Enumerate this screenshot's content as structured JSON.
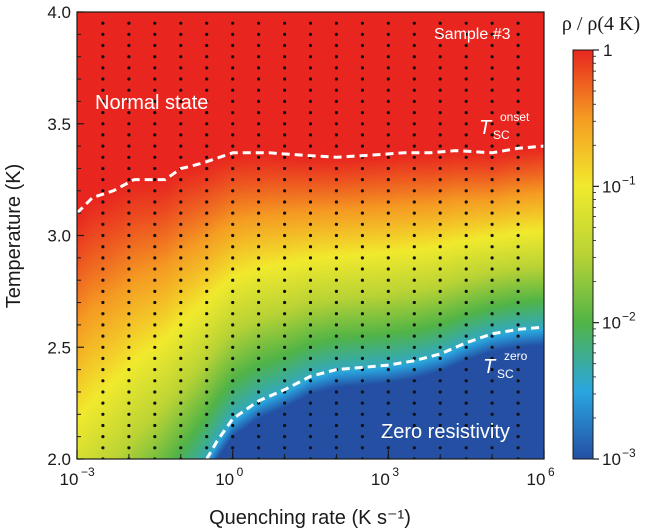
{
  "chart_data": {
    "type": "heatmap",
    "sample_label": "Sample #3",
    "xlabel": "Quenching rate (K s⁻¹)",
    "ylabel": "Temperature (K)",
    "x_scale": "log",
    "xlim": [
      0.001,
      1000000
    ],
    "ylim": [
      2.0,
      4.0
    ],
    "x_ticks": [
      {
        "value": 0.001,
        "base": "10",
        "exp": "−3"
      },
      {
        "value": 1,
        "base": "10",
        "exp": "0"
      },
      {
        "value": 1000,
        "base": "10",
        "exp": "3"
      },
      {
        "value": 1000000,
        "base": "10",
        "exp": "6"
      }
    ],
    "y_ticks": [
      "2.0",
      "2.5",
      "3.0",
      "3.5",
      "4.0"
    ],
    "colorbar": {
      "title": "ρ / ρ(4 K)",
      "scale": "log",
      "range": [
        0.001,
        1
      ],
      "ticks": [
        {
          "value": 1,
          "label": "1"
        },
        {
          "value": 0.1,
          "base": "10",
          "exp": "−1"
        },
        {
          "value": 0.01,
          "base": "10",
          "exp": "−2"
        },
        {
          "value": 0.001,
          "base": "10",
          "exp": "−3"
        }
      ],
      "colors": [
        "#244fa3",
        "#2aa6df",
        "#51b447",
        "#b9d335",
        "#f1ea2d",
        "#f59b22",
        "#e8261f"
      ]
    },
    "annotations": {
      "normal_state": "Normal state",
      "zero_resistivity": "Zero resistivity",
      "tsc_onset": {
        "main": "T",
        "sub": "SC",
        "sup": "onset"
      },
      "tsc_zero": {
        "main": "T",
        "sub": "SC",
        "sup": "zero"
      }
    },
    "measurement_points": {
      "x_log10": [
        -2.5,
        -2.0,
        -1.5,
        -1.0,
        -0.5,
        0.0,
        0.5,
        1.0,
        1.5,
        2.0,
        2.5,
        3.0,
        3.5,
        4.0,
        4.5,
        5.0,
        5.5
      ],
      "temperatures": [
        2.0,
        2.05,
        2.1,
        2.15,
        2.2,
        2.25,
        2.3,
        2.35,
        2.4,
        2.45,
        2.5,
        2.55,
        2.6,
        2.65,
        2.7,
        2.75,
        2.8,
        2.85,
        2.9,
        2.95,
        3.0,
        3.05,
        3.1,
        3.15,
        3.2,
        3.25,
        3.3,
        3.35,
        3.4,
        3.45,
        3.5,
        3.55,
        3.6,
        3.65,
        3.7,
        3.75,
        3.8,
        3.85,
        3.9,
        3.95
      ]
    },
    "series": [
      {
        "name": "T_SC onset",
        "x_log10": [
          -3.0,
          -2.7,
          -2.3,
          -1.9,
          -1.3,
          -1.0,
          -0.8,
          -0.5,
          0.0,
          0.7,
          1.3,
          2.0,
          2.7,
          3.3,
          3.8,
          4.3,
          5.0,
          5.5,
          6.0
        ],
        "y": [
          3.1,
          3.17,
          3.2,
          3.25,
          3.25,
          3.3,
          3.31,
          3.33,
          3.37,
          3.37,
          3.36,
          3.35,
          3.36,
          3.37,
          3.37,
          3.38,
          3.37,
          3.39,
          3.4
        ]
      },
      {
        "name": "T_SC zero",
        "x_log10": [
          -0.5,
          -0.3,
          0.0,
          0.5,
          1.0,
          1.5,
          2.0,
          2.5,
          3.0,
          3.5,
          4.0,
          4.5,
          5.0,
          5.5,
          6.0
        ],
        "y": [
          2.0,
          2.08,
          2.18,
          2.26,
          2.31,
          2.37,
          2.4,
          2.41,
          2.42,
          2.44,
          2.47,
          2.52,
          2.56,
          2.58,
          2.59
        ]
      }
    ],
    "field": {
      "description_of_levels": "log10 of rho/rho(4K)",
      "onset_decade_width": 0.18,
      "zero_decade_width": 0.08
    }
  }
}
